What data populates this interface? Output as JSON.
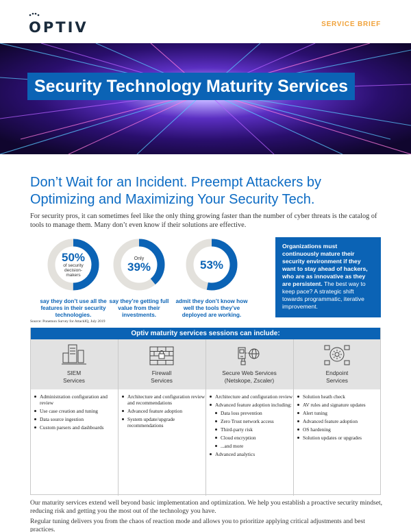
{
  "header": {
    "logo_text": "OPTIV",
    "doc_type": "SERVICE BRIEF"
  },
  "hero": {
    "title": "Security Technology Maturity Services"
  },
  "headline": "Don’t Wait for an Incident. Preempt Attackers by Optimizing and Maximizing Your Security Tech.",
  "intro": "For security pros, it can sometimes feel like the only thing growing faster than the number of cyber threats is the catalog of tools to manage them. Many don’t even know if their solutions are effective.",
  "stats": [
    {
      "value": "50%",
      "sub": "of security decision-makers",
      "prefix": "",
      "caption": "say they don’t use all the features in their security technologies.",
      "fill": 0.5
    },
    {
      "value": "39%",
      "sub": "",
      "prefix": "Only",
      "caption": "say they’re getting full value from their investments.",
      "fill": 0.39
    },
    {
      "value": "53%",
      "sub": "",
      "prefix": "",
      "caption": "admit they don’t know how well the tools they’ve deployed are working.",
      "fill": 0.53
    }
  ],
  "callout": {
    "bold": "Organizations must continuously mature their security environment if they want to stay ahead of hackers, who are as innovative as they are persistent.",
    "normal": " The best way to keep pace? A strategic shift towards programmatic, iterative improvement."
  },
  "source": "Source: Ponemon Survey for AttackIQ, July 2019",
  "services": {
    "header": "Optiv maturity services sessions can include:",
    "columns": [
      {
        "title_line1": "SIEM",
        "title_line2": "Services",
        "icon": "server-icon",
        "items": [
          {
            "text": "Administration configuration and review",
            "sub": false
          },
          {
            "text": "Use case creation and tuning",
            "sub": false
          },
          {
            "text": "Data source ingestion",
            "sub": false
          },
          {
            "text": "Custom parsers and dashboards",
            "sub": false
          }
        ]
      },
      {
        "title_line1": "Firewall",
        "title_line2": "Services",
        "icon": "firewall-icon",
        "items": [
          {
            "text": "Architecture and configuration review and recommendations",
            "sub": false
          },
          {
            "text": "Advanced feature adoption",
            "sub": false
          },
          {
            "text": "System update/upgrade recommendations",
            "sub": false
          }
        ]
      },
      {
        "title_line1": "Secure Web Services",
        "title_line2": "(Netskope, Zscaler)",
        "icon": "secure-web-icon",
        "items": [
          {
            "text": "Architecture and configuration review",
            "sub": false
          },
          {
            "text": "Advanced feature adoption including:",
            "sub": false
          },
          {
            "text": "Data loss prevention",
            "sub": true
          },
          {
            "text": "Zero Trust network access",
            "sub": true
          },
          {
            "text": "Third-party risk",
            "sub": true
          },
          {
            "text": "Cloud encryption",
            "sub": true
          },
          {
            "text": "...and more",
            "sub": true
          },
          {
            "text": "Advanced analytics",
            "sub": false
          }
        ]
      },
      {
        "title_line1": "Endpoint",
        "title_line2": "Services",
        "icon": "endpoint-icon",
        "items": [
          {
            "text": "Solution heath check",
            "sub": false
          },
          {
            "text": "AV rules and signature updates",
            "sub": false
          },
          {
            "text": "Alert tuning",
            "sub": false
          },
          {
            "text": "Advanced feature adoption",
            "sub": false
          },
          {
            "text": "OS hardening",
            "sub": false
          },
          {
            "text": "Solution updates or upgrades",
            "sub": false
          }
        ]
      }
    ]
  },
  "outro": [
    "Our maturity services extend well beyond basic implementation and optimization. We help you establish a proactive security mindset, reducing risk and getting you the most out of the technology you have.",
    "Regular tuning delivers you from the chaos of reaction mode and allows you to prioritize applying critical adjustments and best practices."
  ],
  "colors": {
    "brand_blue": "#0b63b5",
    "accent_orange": "#f0a23a",
    "donut_track": "#e3e1dc"
  }
}
